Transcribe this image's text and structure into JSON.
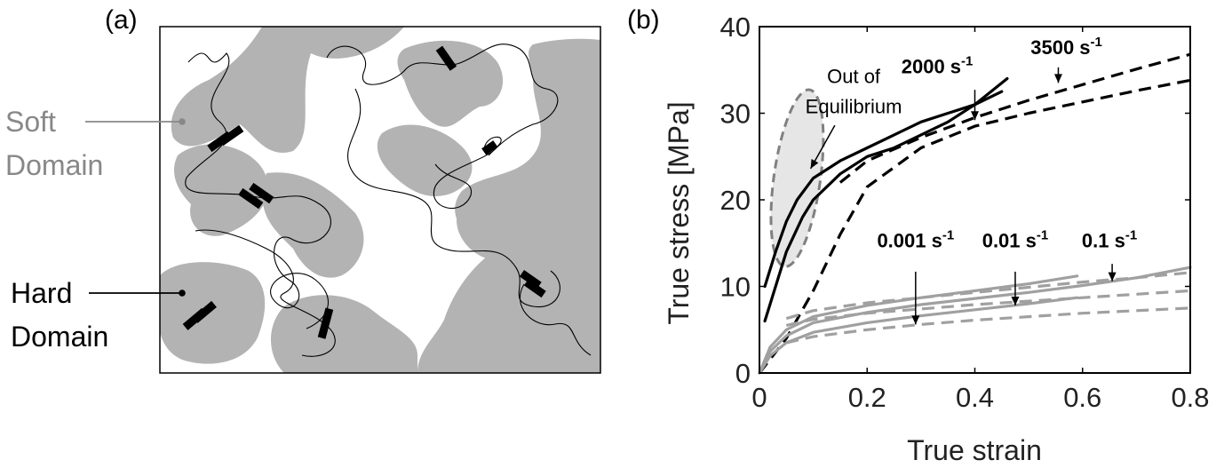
{
  "panel_a": {
    "label": "(a)",
    "soft_label_line1": "Soft",
    "soft_label_line2": "Domain",
    "hard_label_line1": "Hard",
    "hard_label_line2": "Domain",
    "soft_color": "#888888",
    "hard_color": "#000000",
    "domain_fill": "#b3b3b3"
  },
  "panel_b": {
    "label": "(b)",
    "out_of_eq_line1": "Out of",
    "out_of_eq_line2": "Equilibrium",
    "rates_high": [
      {
        "value": "2000",
        "unit": " s",
        "exp": "-1"
      },
      {
        "value": "3500",
        "unit": " s",
        "exp": "-1"
      }
    ],
    "rates_low": [
      {
        "value": "0.001",
        "unit": " s",
        "exp": "-1"
      },
      {
        "value": "0.01",
        "unit": " s",
        "exp": "-1"
      },
      {
        "value": "0.1",
        "unit": " s",
        "exp": "-1"
      }
    ]
  },
  "colors": {
    "high_rate": "#000000",
    "low_rate": "#a0a0a0",
    "ellipse_fill": "#e6e6e6",
    "ellipse_stroke": "#808080"
  },
  "chart_data": {
    "type": "line",
    "title": "",
    "xlabel": "True strain",
    "ylabel": "True stress [MPa]",
    "xlim": [
      0,
      0.8
    ],
    "ylim": [
      0,
      40
    ],
    "xticks": [
      0,
      0.2,
      0.4,
      0.6,
      0.8
    ],
    "xtick_labels": [
      "0",
      "0.2",
      "0.4",
      "0.6",
      "0.8"
    ],
    "yticks": [
      0,
      10,
      20,
      30,
      40
    ],
    "ytick_labels": [
      "0",
      "10",
      "20",
      "30",
      "40"
    ],
    "grid": false,
    "series": [
      {
        "style": "solid",
        "color": "high_rate",
        "x": [
          0.01,
          0.03,
          0.05,
          0.07,
          0.1,
          0.15,
          0.2,
          0.25,
          0.3,
          0.35,
          0.4,
          0.45
        ],
        "y": [
          10,
          14,
          17.5,
          20,
          22.5,
          24.5,
          26,
          27.5,
          29,
          30,
          31,
          32.5
        ]
      },
      {
        "style": "solid",
        "color": "high_rate",
        "x": [
          0.01,
          0.03,
          0.05,
          0.08,
          0.1,
          0.15,
          0.2,
          0.25,
          0.3,
          0.35,
          0.4,
          0.46
        ],
        "y": [
          6,
          10,
          14,
          18,
          20,
          23,
          25,
          26,
          27.5,
          29,
          31,
          34
        ]
      },
      {
        "style": "dashed",
        "color": "high_rate",
        "x": [
          0,
          0.05,
          0.1,
          0.15,
          0.2,
          0.3,
          0.4,
          0.5,
          0.6,
          0.7,
          0.8
        ],
        "y": [
          0,
          4,
          9.5,
          16,
          21.5,
          26,
          28.5,
          30,
          31.3,
          32.6,
          33.8
        ]
      },
      {
        "style": "dashed",
        "color": "high_rate",
        "x": [
          0.15,
          0.2,
          0.3,
          0.4,
          0.5,
          0.6,
          0.7,
          0.8
        ],
        "y": [
          22,
          24.5,
          27.2,
          29.5,
          31.5,
          33.3,
          35.1,
          36.8
        ]
      },
      {
        "style": "solid",
        "color": "low_rate",
        "x": [
          0,
          0.02,
          0.05,
          0.1,
          0.2,
          0.3,
          0.4,
          0.5,
          0.59
        ],
        "y": [
          0,
          3,
          5,
          6.5,
          7.8,
          8.7,
          9.5,
          10.3,
          11.2
        ]
      },
      {
        "style": "solid",
        "color": "low_rate",
        "x": [
          0,
          0.02,
          0.05,
          0.1,
          0.2,
          0.3,
          0.4,
          0.5,
          0.6,
          0.7,
          0.8
        ],
        "y": [
          0,
          2.5,
          4.3,
          5.8,
          7,
          7.9,
          8.6,
          9.3,
          10.1,
          11,
          12.2
        ]
      },
      {
        "style": "solid",
        "color": "low_rate",
        "x": [
          0,
          0.02,
          0.05,
          0.1,
          0.2,
          0.3,
          0.4,
          0.5,
          0.59
        ],
        "y": [
          0,
          2,
          3.5,
          4.7,
          5.8,
          6.6,
          7.3,
          8,
          8.7
        ]
      },
      {
        "style": "dashed",
        "color": "low_rate",
        "x": [
          0.05,
          0.1,
          0.2,
          0.3,
          0.4,
          0.5,
          0.6,
          0.7,
          0.8
        ],
        "y": [
          6.3,
          7.2,
          8.1,
          8.7,
          9.3,
          9.9,
          10.5,
          11,
          11.6
        ]
      },
      {
        "style": "dashed",
        "color": "low_rate",
        "x": [
          0.05,
          0.1,
          0.2,
          0.3,
          0.4,
          0.5,
          0.6,
          0.7,
          0.8
        ],
        "y": [
          5.5,
          6.2,
          6.9,
          7.4,
          7.9,
          8.3,
          8.7,
          9.1,
          9.5
        ]
      },
      {
        "style": "dashed",
        "color": "low_rate",
        "x": [
          0.05,
          0.1,
          0.2,
          0.3,
          0.4,
          0.5,
          0.6,
          0.7,
          0.8
        ],
        "y": [
          3.5,
          4.2,
          5,
          5.6,
          6.1,
          6.5,
          6.9,
          7.2,
          7.5
        ]
      }
    ],
    "annotations": [
      {
        "text": "Out of Equilibrium",
        "x": 0.07,
        "y": 22.5
      }
    ]
  }
}
